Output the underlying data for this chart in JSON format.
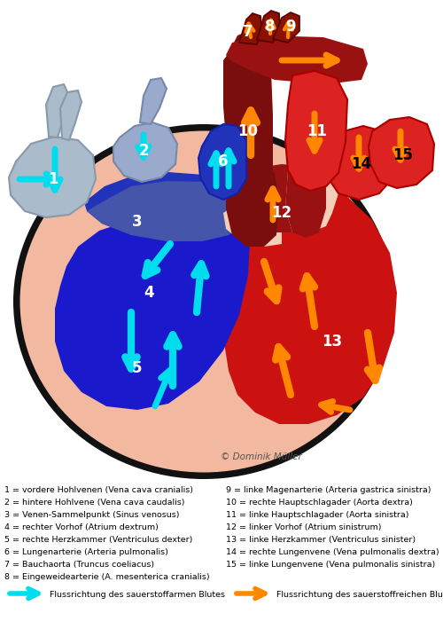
{
  "bg_color": "#ffffff",
  "copyright": "© Dominik Müller",
  "pericardium_color": "#f2b8a0",
  "right_vent_color": "#1a1acc",
  "left_vent_color": "#cc1111",
  "dark_red_color": "#991111",
  "darker_red_color": "#7a0d0d",
  "right_atrium_color": "#3333bb",
  "sinus_color": "#5566aa",
  "vc_color": "#99aabb",
  "vc2_color": "#8899bb",
  "pa_color": "#2233aa",
  "bright_red_color": "#dd2222",
  "pink_color": "#f5cdb8",
  "cyan_arrow_color": "#00ddee",
  "orange_arrow_color": "#ff8800",
  "outline_color": "#111111",
  "legend_left": [
    "1 = vordere Hohlvenen (Vena cava cranialis)",
    "2 = hintere Hohlvene (Vena cava caudalis)",
    "3 = Venen-Sammelpunkt (Sinus venosus)",
    "4 = rechter Vorhof (Atrium dextrum)",
    "5 = rechte Herzkammer (Ventriculus dexter)",
    "6 = Lungenarterie (Arteria pulmonalis)",
    "7 = Bauchaorta (Truncus coeliacus)",
    "8 = Eingeweidearterie (A. mesenterica cranialis)"
  ],
  "legend_right": [
    "9 = linke Magenarterie (Arteria gastrica sinistra)",
    "10 = rechte Hauptschlagader (Aorta dextra)",
    "11 = linke Hauptschlagader (Aorta sinistra)",
    "12 = linker Vorhof (Atrium sinistrum)",
    "13 = linke Herzkammer (Ventriculus sinister)",
    "14 = rechte Lungenvene (Vena pulmonalis dextra)",
    "15 = linke Lungenvene (Vena pulmonalis sinistra)"
  ],
  "legend_cyan": "Flussrichtung des sauerstoffarmen Blutes",
  "legend_orange": "Flussrichtung des sauerstoffreichen Blutes"
}
